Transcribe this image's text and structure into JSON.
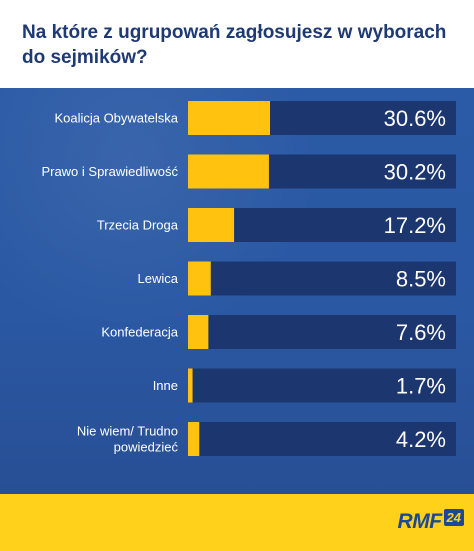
{
  "chart_data": {
    "type": "bar",
    "orientation": "horizontal",
    "title": "Na które z ugrupowań zagłosujesz w wyborach do sejmików?",
    "categories": [
      "Koalicja Obywatelska",
      "Prawo i Sprawiedliwość",
      "Trzecia Droga",
      "Lewica",
      "Konfederacja",
      "Inne",
      "Nie wiem/ Trudno powiedzieć"
    ],
    "values": [
      30.6,
      30.2,
      17.2,
      8.5,
      7.6,
      1.7,
      4.2
    ],
    "value_labels": [
      "30.6%",
      "30.2%",
      "17.2%",
      "8.5%",
      "7.6%",
      "1.7%",
      "4.2%"
    ],
    "xlim": [
      0,
      100
    ],
    "grid": false,
    "legend": "none"
  },
  "colors": {
    "bar_fill": "#ffc20e",
    "bar_track": "#1c3670",
    "panel": "#2a58a3",
    "title": "#1f3a73",
    "footer": "#ffd11a",
    "brand": "#1e4896"
  },
  "brand": {
    "name": "RMF",
    "number": "24"
  }
}
